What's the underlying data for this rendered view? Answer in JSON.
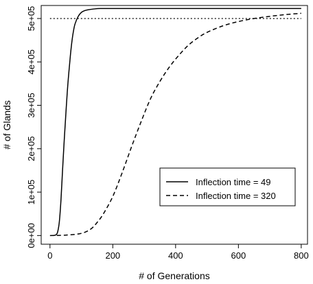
{
  "chart_data": {
    "type": "line",
    "title": "",
    "xlabel": "# of Generations",
    "ylabel": "# of Glands",
    "xlim": [
      -28,
      820
    ],
    "ylim": [
      -20000,
      530000
    ],
    "x_ticks": [
      0,
      200,
      400,
      600,
      800
    ],
    "x_tick_labels": [
      "0",
      "200",
      "400",
      "600",
      "800"
    ],
    "y_ticks": [
      0,
      100000,
      200000,
      300000,
      400000,
      500000
    ],
    "y_tick_labels": [
      "0e+00",
      "1e+05",
      "2e+05",
      "3e+05",
      "4e+05",
      "5e+05"
    ],
    "grid": false,
    "legend_position": "bottom-right",
    "reference_line": {
      "y": 500000,
      "style": "dotted",
      "x_start": 0,
      "x_end": 800
    },
    "series": [
      {
        "name": "Inflection time = 49",
        "style": "solid",
        "x": [
          10,
          20,
          25,
          30,
          35,
          40,
          45,
          49,
          55,
          60,
          65,
          70,
          75,
          80,
          90,
          100,
          110,
          120,
          140,
          160,
          200,
          300,
          400,
          500,
          600,
          700,
          800
        ],
        "y": [
          0,
          2000,
          10000,
          33000,
          82000,
          150000,
          215000,
          262000,
          330000,
          375000,
          415000,
          448000,
          472000,
          488000,
          505000,
          514000,
          518000,
          520000,
          522000,
          523000,
          523000,
          523000,
          523000,
          523000,
          523000,
          523000,
          523000
        ]
      },
      {
        "name": "Inflection time = 320",
        "style": "dashed",
        "x": [
          0,
          50,
          100,
          130,
          150,
          170,
          200,
          230,
          260,
          290,
          320,
          350,
          380,
          410,
          440,
          470,
          500,
          550,
          600,
          650,
          700,
          750,
          800
        ],
        "y": [
          0,
          1000,
          5000,
          15000,
          30000,
          50000,
          90000,
          145000,
          205000,
          262000,
          315000,
          355000,
          388000,
          415000,
          438000,
          455000,
          468000,
          483000,
          493000,
          500000,
          505000,
          509000,
          512000
        ]
      }
    ]
  }
}
